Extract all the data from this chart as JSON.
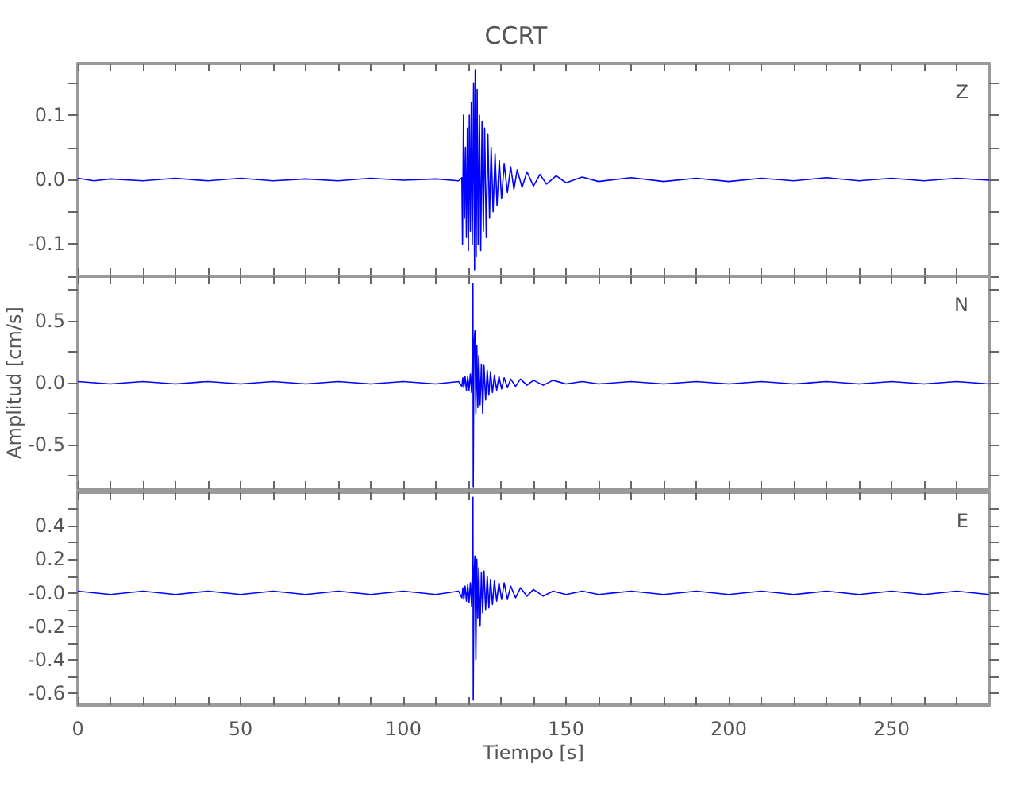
{
  "chart_data": [
    {
      "type": "line",
      "title": "CCRT",
      "xlim": [
        0,
        280
      ],
      "ylim": [
        -0.15,
        0.18
      ],
      "tick_labels": "y",
      "marker": "none",
      "line_style": "solid",
      "xticks": [
        0,
        {
          "value": 10,
          "label": null
        },
        {
          "value": 20,
          "label": null
        },
        {
          "value": 30,
          "label": null
        },
        {
          "value": 40,
          "label": null
        },
        50,
        {
          "value": 60,
          "label": null
        },
        {
          "value": 70,
          "label": null
        },
        {
          "value": 80,
          "label": null
        },
        {
          "value": 90,
          "label": null
        },
        100,
        {
          "value": 110,
          "label": null
        },
        {
          "value": 120,
          "label": null
        },
        {
          "value": 130,
          "label": null
        },
        {
          "value": 140,
          "label": null
        },
        150,
        {
          "value": 160,
          "label": null
        },
        {
          "value": 170,
          "label": null
        },
        {
          "value": 180,
          "label": null
        },
        {
          "value": 190,
          "label": null
        },
        200,
        {
          "value": 210,
          "label": null
        },
        {
          "value": 220,
          "label": null
        },
        {
          "value": 230,
          "label": null
        },
        {
          "value": 240,
          "label": null
        },
        250,
        {
          "value": 260,
          "label": null
        },
        {
          "value": 270,
          "label": null
        }
      ],
      "yticks": [
        {
          "value": -0.15,
          "label": null
        },
        -0.1,
        {
          "value": -0.05,
          "label": null
        },
        {
          "value": 0,
          "label": "0.0"
        },
        {
          "value": 0.05,
          "label": null
        },
        0.1,
        {
          "value": 0.15,
          "label": null
        }
      ],
      "x": [
        0,
        5,
        10,
        20,
        30,
        40,
        50,
        60,
        70,
        80,
        90,
        100,
        110,
        117,
        118,
        118.2,
        118.5,
        118.8,
        119.1,
        119.4,
        119.7,
        120,
        120.3,
        120.6,
        120.9,
        121.2,
        121.6,
        121.9,
        122.1,
        122.4,
        122.7,
        123,
        123.4,
        123.8,
        124.2,
        124.6,
        125,
        125.5,
        126,
        126.5,
        127,
        127.6,
        128.2,
        128.8,
        129.5,
        130.2,
        131,
        132,
        133,
        134,
        135,
        136.5,
        138,
        140,
        142,
        144,
        147,
        150,
        155,
        160,
        170,
        180,
        190,
        200,
        210,
        220,
        230,
        240,
        250,
        260,
        270,
        280
      ],
      "series": [
        {
          "name": "Z",
          "color": "#0000ff",
          "values": [
            0.002,
            -0.002,
            0.001,
            -0.002,
            0.002,
            -0.002,
            0.002,
            -0.002,
            0.001,
            -0.002,
            0.002,
            -0.001,
            0.001,
            -0.002,
            0.003,
            -0.1,
            0.1,
            -0.06,
            0.05,
            -0.09,
            0.08,
            -0.11,
            0.1,
            -0.08,
            0.12,
            -0.1,
            0.15,
            -0.14,
            0.17,
            -0.12,
            0.14,
            -0.1,
            0.1,
            -0.11,
            0.09,
            -0.08,
            0.08,
            -0.09,
            0.07,
            -0.06,
            0.05,
            -0.05,
            0.04,
            -0.04,
            0.03,
            -0.03,
            0.025,
            -0.02,
            0.02,
            -0.015,
            0.015,
            -0.012,
            0.012,
            -0.01,
            0.008,
            -0.007,
            0.006,
            -0.005,
            0.004,
            -0.003,
            0.003,
            -0.003,
            0.002,
            -0.003,
            0.002,
            -0.002,
            0.003,
            -0.002,
            0.002,
            -0.002,
            0.002,
            -0.001
          ]
        }
      ]
    },
    {
      "type": "line",
      "ylabel": "Amplitud [cm/s]",
      "xlim": [
        0,
        280
      ],
      "ylim": [
        -0.86,
        0.86
      ],
      "tick_labels": "y",
      "marker": "none",
      "line_style": "solid",
      "xticks": [
        0,
        {
          "value": 10,
          "label": null
        },
        {
          "value": 20,
          "label": null
        },
        {
          "value": 30,
          "label": null
        },
        {
          "value": 40,
          "label": null
        },
        50,
        {
          "value": 60,
          "label": null
        },
        {
          "value": 70,
          "label": null
        },
        {
          "value": 80,
          "label": null
        },
        {
          "value": 90,
          "label": null
        },
        100,
        {
          "value": 110,
          "label": null
        },
        {
          "value": 120,
          "label": null
        },
        {
          "value": 130,
          "label": null
        },
        {
          "value": 140,
          "label": null
        },
        150,
        {
          "value": 160,
          "label": null
        },
        {
          "value": 170,
          "label": null
        },
        {
          "value": 180,
          "label": null
        },
        {
          "value": 190,
          "label": null
        },
        200,
        {
          "value": 210,
          "label": null
        },
        {
          "value": 220,
          "label": null
        },
        {
          "value": 230,
          "label": null
        },
        {
          "value": 240,
          "label": null
        },
        250,
        {
          "value": 260,
          "label": null
        },
        {
          "value": 270,
          "label": null
        }
      ],
      "yticks": [
        {
          "value": -0.75,
          "label": null
        },
        -0.5,
        {
          "value": -0.25,
          "label": null
        },
        {
          "value": 0,
          "label": "0.0"
        },
        {
          "value": 0.25,
          "label": null
        },
        0.5,
        {
          "value": 0.75,
          "label": null
        }
      ],
      "x": [
        0,
        10,
        20,
        30,
        40,
        50,
        60,
        70,
        80,
        90,
        100,
        110,
        117,
        118,
        118.3,
        118.6,
        119,
        119.4,
        119.8,
        120.2,
        120.6,
        121,
        121.2,
        121.4,
        121.5,
        121.7,
        122,
        122.3,
        122.6,
        122.9,
        123.2,
        123.6,
        124,
        124.4,
        124.8,
        125.3,
        125.8,
        126.3,
        126.8,
        127.4,
        128,
        128.7,
        129.4,
        130.2,
        131,
        132,
        133,
        134.5,
        136,
        138,
        140,
        143,
        146,
        150,
        155,
        160,
        170,
        180,
        190,
        200,
        210,
        220,
        230,
        240,
        250,
        260,
        270,
        280
      ],
      "series": [
        {
          "name": "N",
          "color": "#0000ff",
          "values": [
            0.01,
            -0.01,
            0.01,
            -0.01,
            0.01,
            -0.01,
            0.01,
            -0.01,
            0.01,
            -0.01,
            0.01,
            -0.01,
            0.01,
            -0.03,
            0.04,
            -0.04,
            0.05,
            -0.06,
            0.05,
            -0.06,
            0.07,
            -0.08,
            0.2,
            0.8,
            -0.84,
            0.3,
            0.42,
            -0.25,
            0.3,
            -0.2,
            0.22,
            -0.18,
            0.15,
            -0.25,
            0.14,
            -0.14,
            0.1,
            -0.1,
            0.09,
            -0.08,
            0.06,
            -0.06,
            0.05,
            -0.05,
            0.04,
            -0.04,
            0.03,
            -0.03,
            0.03,
            -0.02,
            0.02,
            -0.02,
            0.02,
            -0.01,
            0.01,
            -0.01,
            0.01,
            -0.01,
            0.01,
            -0.01,
            0.01,
            -0.01,
            0.01,
            -0.01,
            0.01,
            -0.01,
            0.01,
            -0.01
          ]
        }
      ]
    },
    {
      "type": "line",
      "xlabel": "Tiempo [s]",
      "xlim": [
        0,
        280
      ],
      "ylim": [
        -0.67,
        0.6
      ],
      "marker": "none",
      "line_style": "solid",
      "xticks": [
        0,
        {
          "value": 10,
          "label": null
        },
        {
          "value": 20,
          "label": null
        },
        {
          "value": 30,
          "label": null
        },
        {
          "value": 40,
          "label": null
        },
        50,
        {
          "value": 60,
          "label": null
        },
        {
          "value": 70,
          "label": null
        },
        {
          "value": 80,
          "label": null
        },
        {
          "value": 90,
          "label": null
        },
        100,
        {
          "value": 110,
          "label": null
        },
        {
          "value": 120,
          "label": null
        },
        {
          "value": 130,
          "label": null
        },
        {
          "value": 140,
          "label": null
        },
        150,
        {
          "value": 160,
          "label": null
        },
        {
          "value": 170,
          "label": null
        },
        {
          "value": 180,
          "label": null
        },
        {
          "value": 190,
          "label": null
        },
        200,
        {
          "value": 210,
          "label": null
        },
        {
          "value": 220,
          "label": null
        },
        {
          "value": 230,
          "label": null
        },
        {
          "value": 240,
          "label": null
        },
        250,
        {
          "value": 260,
          "label": null
        },
        {
          "value": 270,
          "label": null
        }
      ],
      "yticks": [
        {
          "value": -0.6,
          "label": "-0.6"
        },
        {
          "value": -0.5,
          "label": null
        },
        -0.4,
        {
          "value": -0.3,
          "label": null
        },
        -0.2,
        {
          "value": -0.1,
          "label": null
        },
        {
          "value": 0,
          "label": "-0.0"
        },
        {
          "value": 0.1,
          "label": null
        },
        0.2,
        {
          "value": 0.3,
          "label": null
        },
        0.4,
        {
          "value": 0.5,
          "label": null
        }
      ],
      "x": [
        0,
        10,
        20,
        30,
        40,
        50,
        60,
        70,
        80,
        90,
        100,
        110,
        117,
        118,
        118.3,
        118.6,
        119,
        119.4,
        119.8,
        120.2,
        120.6,
        121,
        121.2,
        121.4,
        121.5,
        121.7,
        122,
        122.3,
        122.6,
        122.9,
        123.2,
        123.6,
        124,
        124.4,
        124.8,
        125.3,
        125.8,
        126.3,
        126.8,
        127.4,
        128,
        128.7,
        129.4,
        130.2,
        131,
        132,
        133,
        134.5,
        136,
        138,
        140,
        143,
        146,
        150,
        155,
        160,
        170,
        180,
        190,
        200,
        210,
        220,
        230,
        240,
        250,
        260,
        270,
        280
      ],
      "series": [
        {
          "name": "E",
          "color": "#0000ff",
          "values": [
            0.01,
            -0.01,
            0.01,
            -0.01,
            0.01,
            -0.01,
            0.01,
            -0.01,
            0.01,
            -0.01,
            0.01,
            -0.01,
            0.01,
            -0.03,
            0.03,
            -0.04,
            0.04,
            -0.05,
            0.05,
            -0.06,
            0.06,
            -0.08,
            0.15,
            0.57,
            -0.64,
            0.1,
            0.22,
            -0.4,
            0.2,
            -0.15,
            0.15,
            -0.2,
            0.12,
            -0.12,
            0.13,
            -0.1,
            0.1,
            -0.09,
            0.08,
            -0.07,
            0.07,
            -0.05,
            0.06,
            -0.04,
            0.06,
            -0.04,
            0.04,
            -0.03,
            0.03,
            -0.02,
            0.02,
            -0.02,
            0.01,
            -0.01,
            0.01,
            -0.01,
            0.01,
            -0.01,
            0.01,
            -0.01,
            0.01,
            -0.01,
            0.01,
            -0.01,
            0.01,
            -0.01,
            0.01,
            -0.01
          ]
        }
      ]
    }
  ]
}
